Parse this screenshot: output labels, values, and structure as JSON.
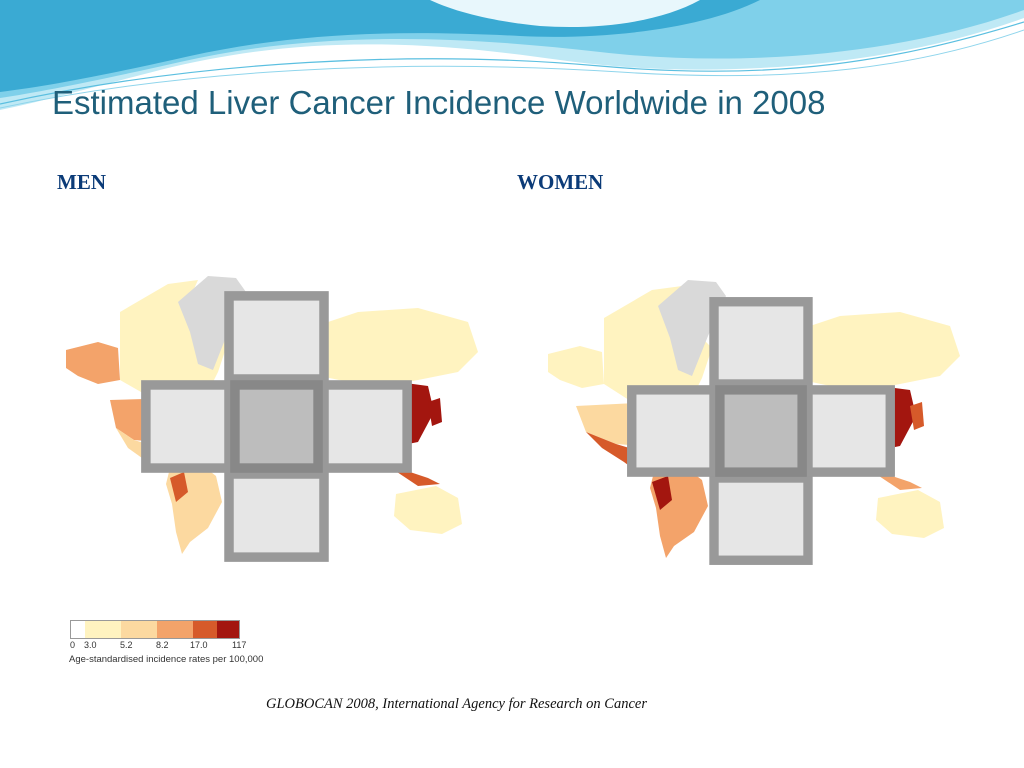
{
  "slide": {
    "title": "Estimated Liver Cancer Incidence Worldwide in 2008",
    "men_label": "MEN",
    "women_label": "WOMEN",
    "source": "GLOBOCAN 2008, International Agency for Research on Cancer"
  },
  "legend": {
    "ticks": [
      "0",
      "3.0",
      "5.2",
      "8.2",
      "17.0",
      "117"
    ],
    "caption": "Age-standardised incidence rates per 100,000",
    "colors": [
      "#ffffff",
      "#fff3c0",
      "#fcd9a0",
      "#f3a36a",
      "#d65a2a",
      "#a3160f"
    ]
  },
  "colors": {
    "title": "#1f5f7a",
    "label": "#0b3b78",
    "no_data": "#d9d9d9",
    "wave_dark": "#3aaad3",
    "wave_light": "#aee3f2"
  }
}
